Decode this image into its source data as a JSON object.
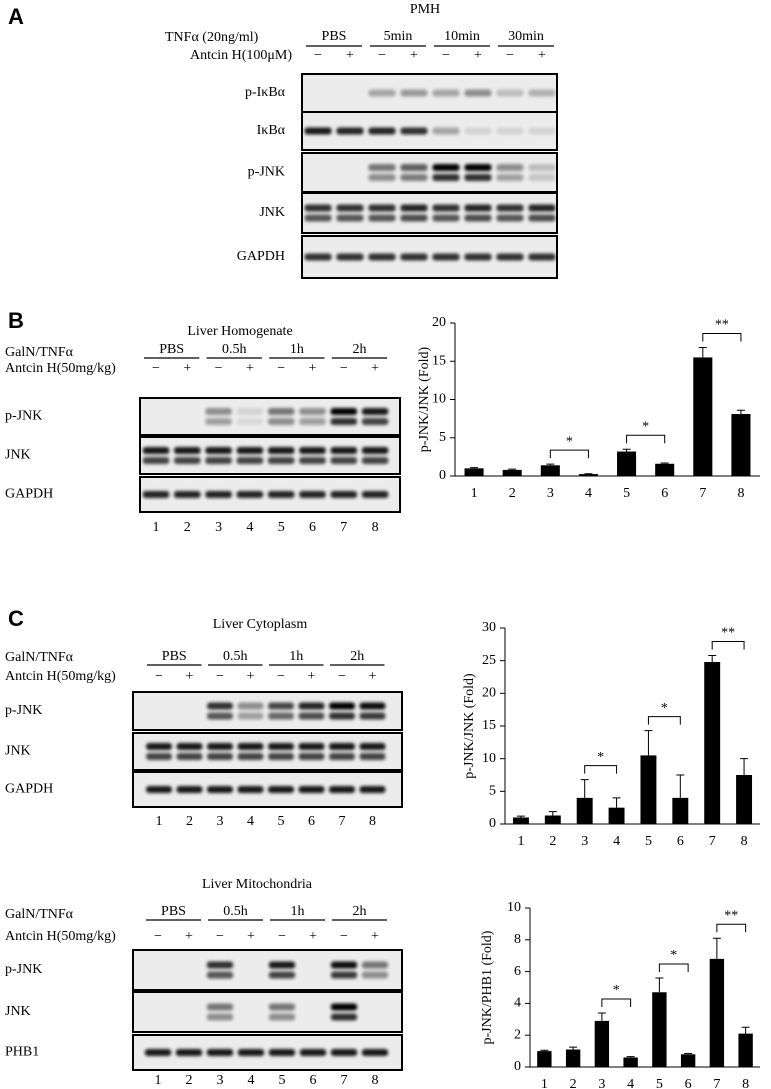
{
  "panels": [
    {
      "letter": "A",
      "title": "PMH",
      "treatment": "TNFα (20ng/ml)",
      "groups": [
        "PBS",
        "5min",
        "10min",
        "30min"
      ],
      "inhibitor": "Antcin H(100μM)",
      "signs": [
        "−",
        "+",
        "−",
        "+",
        "−",
        "+",
        "−",
        "+"
      ],
      "rows": [
        "p-IκBα",
        "IκBα",
        "p-JNK",
        "JNK",
        "GAPDH"
      ]
    },
    {
      "letter": "B",
      "title": "Liver Homogenate",
      "treatment": "GalN/TNFα",
      "groups": [
        "PBS",
        "0.5h",
        "1h",
        "2h"
      ],
      "inhibitor": "Antcin H(50mg/kg)",
      "signs": [
        "−",
        "+",
        "−",
        "+",
        "−",
        "+",
        "−",
        "+"
      ],
      "rows": [
        "p-JNK",
        "JNK",
        "GAPDH"
      ],
      "lanes": [
        "1",
        "2",
        "3",
        "4",
        "5",
        "6",
        "7",
        "8"
      ]
    },
    {
      "letter": "C",
      "title": "Liver Cytoplasm",
      "treatment": "GalN/TNFα",
      "groups": [
        "PBS",
        "0.5h",
        "1h",
        "2h"
      ],
      "inhibitor": "Antcin H(50mg/kg)",
      "signs": [
        "−",
        "+",
        "−",
        "+",
        "−",
        "+",
        "−",
        "+"
      ],
      "rows": [
        "p-JNK",
        "JNK",
        "GAPDH"
      ],
      "lanes": [
        "1",
        "2",
        "3",
        "4",
        "5",
        "6",
        "7",
        "8"
      ]
    },
    {
      "title": "Liver Mitochondria",
      "treatment": "GalN/TNFα",
      "groups": [
        "PBS",
        "0.5h",
        "1h",
        "2h"
      ],
      "inhibitor": "Antcin H(50mg/kg)",
      "signs": [
        "−",
        "+",
        "−",
        "+",
        "−",
        "+",
        "−",
        "+"
      ],
      "rows": [
        "p-JNK",
        "JNK",
        "PHB1"
      ],
      "lanes": [
        "1",
        "2",
        "3",
        "4",
        "5",
        "6",
        "7",
        "8"
      ]
    }
  ],
  "chart_data": [
    {
      "type": "bar",
      "ylabel": "p-JNK/JNK (Fold)",
      "categories": [
        "1",
        "2",
        "3",
        "4",
        "5",
        "6",
        "7",
        "8"
      ],
      "values": [
        1,
        0.8,
        1.4,
        0.25,
        3.2,
        1.6,
        15.5,
        8.1
      ],
      "errors": [
        0.1,
        0.1,
        0.15,
        0.05,
        0.3,
        0.1,
        1.3,
        0.5
      ],
      "color": "#000000",
      "ylim": [
        0,
        20
      ],
      "yticks": [
        0,
        5,
        10,
        15,
        20
      ],
      "significance": [
        {
          "pair": [
            "3",
            "4"
          ],
          "label": "*"
        },
        {
          "pair": [
            "5",
            "6"
          ],
          "label": "*"
        },
        {
          "pair": [
            "7",
            "8"
          ],
          "label": "**"
        }
      ]
    },
    {
      "type": "bar",
      "ylabel": "p-JNK/JNK (Fold)",
      "categories": [
        "1",
        "2",
        "3",
        "4",
        "5",
        "6",
        "7",
        "8"
      ],
      "values": [
        1,
        1.3,
        4,
        2.5,
        10.5,
        4,
        24.8,
        7.5
      ],
      "errors": [
        0.2,
        0.6,
        2.8,
        1.5,
        3.8,
        3.5,
        1,
        2.5
      ],
      "color": "#000000",
      "ylim": [
        0,
        30
      ],
      "yticks": [
        0,
        5,
        10,
        15,
        20,
        25,
        30
      ],
      "significance": [
        {
          "pair": [
            "3",
            "4"
          ],
          "label": "*"
        },
        {
          "pair": [
            "5",
            "6"
          ],
          "label": "*"
        },
        {
          "pair": [
            "7",
            "8"
          ],
          "label": "**"
        }
      ]
    },
    {
      "type": "bar",
      "ylabel": "p-JNK/PHB1 (Fold)",
      "categories": [
        "1",
        "2",
        "3",
        "4",
        "5",
        "6",
        "7",
        "8"
      ],
      "values": [
        1,
        1.1,
        2.9,
        0.6,
        4.7,
        0.8,
        6.8,
        2.1
      ],
      "errors": [
        0.05,
        0.15,
        0.5,
        0.05,
        0.9,
        0.05,
        1.3,
        0.4
      ],
      "color": "#000000",
      "ylim": [
        0,
        10
      ],
      "yticks": [
        0,
        2,
        4,
        6,
        8,
        10
      ],
      "significance": [
        {
          "pair": [
            "3",
            "4"
          ],
          "label": "*"
        },
        {
          "pair": [
            "5",
            "6"
          ],
          "label": "*"
        },
        {
          "pair": [
            "7",
            "8"
          ],
          "label": "**"
        }
      ]
    }
  ]
}
